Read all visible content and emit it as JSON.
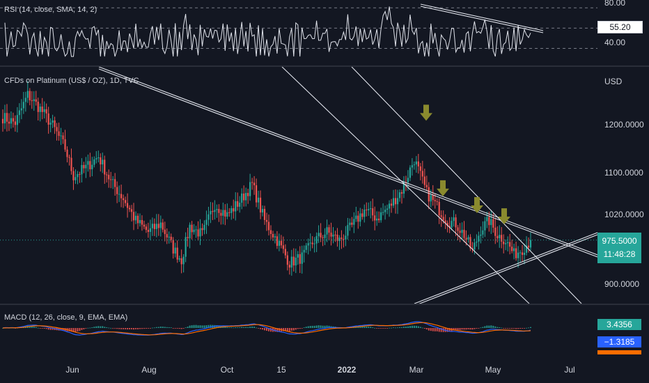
{
  "rsi": {
    "legend": "RSI (14, close, SMA, 14, 2)",
    "ticks": [
      "80.00",
      "40.00"
    ],
    "current": "55.20"
  },
  "price": {
    "legend": "CFDs on Platinum (US$ / OZ), 1D, TVC",
    "currency": "USD",
    "ticks": [
      "1200.0000",
      "1100.0000",
      "1020.0000",
      "900.0000"
    ],
    "current": "975.5000",
    "countdown": "11:48:28"
  },
  "macd": {
    "legend": "MACD (12, 26, close, 9, EMA, EMA)",
    "hist_value": "3.4356",
    "signal_value": "−1.3185"
  },
  "xaxis": [
    "Jun",
    "Aug",
    "Oct",
    "15",
    "2022",
    "Mar",
    "May",
    "Jul"
  ],
  "colors": {
    "up": "#26a69a",
    "down": "#ef5350",
    "arrow": "#8a8a2e",
    "macd_line": "#2962ff",
    "signal_line": "#ff6d00",
    "background": "#131722"
  },
  "chart_data": {
    "type": "candlestick",
    "title": "CFDs on Platinum (US$ / OZ), 1D, TVC",
    "ylabel": "USD",
    "ylim": [
      862,
      1285
    ],
    "x_labels": [
      "Jun",
      "Aug",
      "Oct",
      "15",
      "2022",
      "Mar",
      "May",
      "Jul"
    ],
    "close_anchors": [
      [
        0,
        1195
      ],
      [
        6,
        1185
      ],
      [
        12,
        1235
      ],
      [
        18,
        1210
      ],
      [
        24,
        1180
      ],
      [
        30,
        1140
      ],
      [
        34,
        1090
      ],
      [
        40,
        1105
      ],
      [
        46,
        1125
      ],
      [
        52,
        1080
      ],
      [
        58,
        1050
      ],
      [
        64,
        1010
      ],
      [
        70,
        990
      ],
      [
        76,
        1005
      ],
      [
        82,
        960
      ],
      [
        86,
        940
      ],
      [
        90,
        1000
      ],
      [
        96,
        985
      ],
      [
        102,
        1040
      ],
      [
        108,
        1020
      ],
      [
        114,
        1045
      ],
      [
        120,
        1075
      ],
      [
        126,
        1010
      ],
      [
        132,
        975
      ],
      [
        138,
        935
      ],
      [
        144,
        945
      ],
      [
        150,
        975
      ],
      [
        156,
        990
      ],
      [
        162,
        975
      ],
      [
        168,
        1000
      ],
      [
        174,
        1030
      ],
      [
        180,
        1015
      ],
      [
        186,
        1035
      ],
      [
        192,
        1065
      ],
      [
        198,
        1120
      ],
      [
        204,
        1060
      ],
      [
        210,
        1030
      ],
      [
        214,
        1010
      ],
      [
        218,
        1005
      ],
      [
        222,
        985
      ],
      [
        226,
        955
      ],
      [
        230,
        995
      ],
      [
        234,
        1010
      ],
      [
        238,
        985
      ],
      [
        242,
        975
      ],
      [
        246,
        950
      ],
      [
        250,
        960
      ],
      [
        254,
        975
      ]
    ],
    "marked_peaks": [
      1180,
      1045,
      1015,
      995
    ],
    "rsi": {
      "levels": [
        80,
        40
      ],
      "last": 55.2
    },
    "macd": {
      "hist_last": 3.4356,
      "signal_last": -1.3185
    }
  }
}
